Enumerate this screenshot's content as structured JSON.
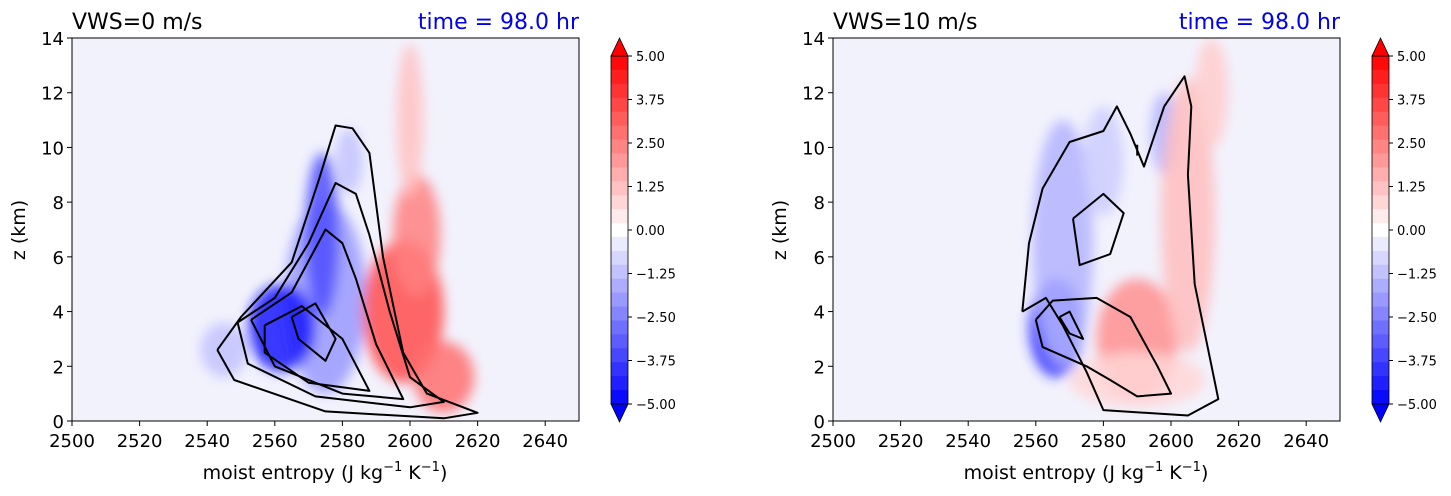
{
  "chart_data": [
    {
      "type": "heatmap",
      "title": "VWS=0 m/s",
      "time_label": "time = 98.0 hr",
      "xlabel": "moist entropy (J kg",
      "xlabel_sup1": "−1",
      "xlabel_mid": " K",
      "xlabel_sup2": "−1",
      "xlabel_end": ")",
      "ylabel": "z (km)",
      "xlim": [
        2500,
        2650
      ],
      "ylim": [
        0,
        14
      ],
      "xticks": [
        "2500",
        "2520",
        "2540",
        "2560",
        "2580",
        "2600",
        "2620",
        "2640"
      ],
      "yticks": [
        "0",
        "2",
        "4",
        "6",
        "8",
        "10",
        "12",
        "14"
      ],
      "colorbar": {
        "min": -5.0,
        "max": 5.0,
        "extend": "both",
        "ticks": [
          "5.00",
          "3.75",
          "2.50",
          "1.25",
          "0.00",
          "−1.25",
          "−2.50",
          "−3.75",
          "−5.00"
        ]
      },
      "blobs": [
        {
          "x": 2575,
          "y": 4.5,
          "rx": 12,
          "ry": 3.5,
          "val": -2.0
        },
        {
          "x": 2562,
          "y": 3.4,
          "rx": 10,
          "ry": 1.6,
          "val": -4.5
        },
        {
          "x": 2574,
          "y": 6.8,
          "rx": 5,
          "ry": 3.0,
          "val": -3.5
        },
        {
          "x": 2582,
          "y": 9.5,
          "rx": 4,
          "ry": 1.2,
          "val": -1.2
        },
        {
          "x": 2545,
          "y": 2.6,
          "rx": 7,
          "ry": 1.0,
          "val": -1.2
        },
        {
          "x": 2598,
          "y": 4.0,
          "rx": 12,
          "ry": 2.6,
          "val": 3.5
        },
        {
          "x": 2602,
          "y": 6.8,
          "rx": 7,
          "ry": 2.2,
          "val": 2.5
        },
        {
          "x": 2600,
          "y": 11.0,
          "rx": 4,
          "ry": 2.8,
          "val": 1.2
        },
        {
          "x": 2610,
          "y": 1.6,
          "rx": 9,
          "ry": 1.3,
          "val": 2.8
        }
      ],
      "contours": [
        [
          [
            2543,
            2.6
          ],
          [
            2550,
            3.8
          ],
          [
            2565,
            5.8
          ],
          [
            2573,
            8.8
          ],
          [
            2578,
            10.8
          ],
          [
            2583,
            10.7
          ],
          [
            2588,
            9.8
          ],
          [
            2592,
            6
          ],
          [
            2598,
            2.5
          ],
          [
            2605,
            1
          ],
          [
            2620,
            0.3
          ],
          [
            2610,
            0.1
          ],
          [
            2575,
            0.35
          ],
          [
            2548,
            1.5
          ],
          [
            2543,
            2.6
          ]
        ],
        [
          [
            2549,
            3.6
          ],
          [
            2560,
            4.5
          ],
          [
            2570,
            6.5
          ],
          [
            2578,
            8.7
          ],
          [
            2584,
            8.3
          ],
          [
            2588,
            6.8
          ],
          [
            2594,
            4
          ],
          [
            2600,
            1.6
          ],
          [
            2610,
            0.7
          ],
          [
            2600,
            0.5
          ],
          [
            2572,
            0.9
          ],
          [
            2552,
            2.1
          ],
          [
            2549,
            3.6
          ]
        ],
        [
          [
            2553,
            3.7
          ],
          [
            2565,
            4.7
          ],
          [
            2575,
            7.0
          ],
          [
            2580,
            6.5
          ],
          [
            2584,
            5.2
          ],
          [
            2590,
            2.8
          ],
          [
            2598,
            0.8
          ],
          [
            2580,
            1.0
          ],
          [
            2560,
            2.0
          ],
          [
            2553,
            3.7
          ]
        ],
        [
          [
            2557,
            3.5
          ],
          [
            2568,
            4.2
          ],
          [
            2580,
            3.0
          ],
          [
            2588,
            1.1
          ],
          [
            2570,
            1.4
          ],
          [
            2557,
            2.5
          ],
          [
            2557,
            3.5
          ]
        ],
        [
          [
            2565,
            3.8
          ],
          [
            2572,
            4.3
          ],
          [
            2578,
            3.0
          ],
          [
            2575,
            2.2
          ],
          [
            2567,
            3.0
          ],
          [
            2565,
            3.8
          ]
        ]
      ]
    },
    {
      "type": "heatmap",
      "title": "VWS=10 m/s",
      "time_label": "time = 98.0 hr",
      "xlabel": "moist entropy (J kg",
      "xlabel_sup1": "−1",
      "xlabel_mid": " K",
      "xlabel_sup2": "−1",
      "xlabel_end": ")",
      "ylabel": "z (km)",
      "xlim": [
        2500,
        2650
      ],
      "ylim": [
        0,
        14
      ],
      "xticks": [
        "2500",
        "2520",
        "2540",
        "2560",
        "2580",
        "2600",
        "2620",
        "2640"
      ],
      "yticks": [
        "0",
        "2",
        "4",
        "6",
        "8",
        "10",
        "12",
        "14"
      ],
      "colorbar": {
        "min": -5.0,
        "max": 5.0,
        "extend": "both",
        "ticks": [
          "5.00",
          "3.75",
          "2.50",
          "1.25",
          "0.00",
          "−1.25",
          "−2.50",
          "−3.75",
          "−5.00"
        ]
      },
      "blobs": [
        {
          "x": 2566,
          "y": 3.4,
          "rx": 8,
          "ry": 1.8,
          "val": -4.2
        },
        {
          "x": 2568,
          "y": 6.5,
          "rx": 9,
          "ry": 4.5,
          "val": -1.5
        },
        {
          "x": 2580,
          "y": 9.5,
          "rx": 6,
          "ry": 2.0,
          "val": -1.0
        },
        {
          "x": 2598,
          "y": 10.5,
          "rx": 4,
          "ry": 1.5,
          "val": -1.5
        },
        {
          "x": 2590,
          "y": 3.0,
          "rx": 12,
          "ry": 2.2,
          "val": 2.2
        },
        {
          "x": 2605,
          "y": 7.5,
          "rx": 8,
          "ry": 5.0,
          "val": 1.3
        },
        {
          "x": 2612,
          "y": 12.0,
          "rx": 5,
          "ry": 2.0,
          "val": 1.0
        },
        {
          "x": 2590,
          "y": 1.5,
          "rx": 20,
          "ry": 1.0,
          "val": 0.8
        }
      ],
      "contours": [
        [
          [
            2556,
            4.0
          ],
          [
            2558,
            6.5
          ],
          [
            2562,
            8.5
          ],
          [
            2570,
            10.2
          ],
          [
            2580,
            10.6
          ],
          [
            2584,
            11.5
          ],
          [
            2588,
            10.5
          ],
          [
            2592,
            9.3
          ],
          [
            2598,
            11.5
          ],
          [
            2604,
            12.6
          ],
          [
            2606,
            11.5
          ],
          [
            2605,
            9
          ],
          [
            2607,
            5
          ],
          [
            2612,
            2.0
          ],
          [
            2614,
            0.8
          ],
          [
            2605,
            0.2
          ],
          [
            2580,
            0.4
          ],
          [
            2575,
            1.8
          ],
          [
            2568,
            3.5
          ],
          [
            2563,
            4.5
          ],
          [
            2556,
            4.0
          ]
        ],
        [
          [
            2560,
            3.7
          ],
          [
            2565,
            4.4
          ],
          [
            2578,
            4.5
          ],
          [
            2588,
            3.8
          ],
          [
            2596,
            2.0
          ],
          [
            2600,
            1.0
          ],
          [
            2590,
            0.9
          ],
          [
            2582,
            1.5
          ],
          [
            2575,
            2.0
          ],
          [
            2562,
            2.7
          ],
          [
            2560,
            3.7
          ]
        ],
        [
          [
            2567,
            3.8
          ],
          [
            2570,
            4.0
          ],
          [
            2574,
            3.0
          ],
          [
            2570,
            3.2
          ],
          [
            2567,
            3.8
          ]
        ],
        [
          [
            2571,
            7.4
          ],
          [
            2580,
            8.3
          ],
          [
            2586,
            7.6
          ],
          [
            2582,
            6.1
          ],
          [
            2573,
            5.7
          ],
          [
            2571,
            7.4
          ]
        ],
        [
          [
            2590,
            10.1
          ],
          [
            2590,
            9.7
          ]
        ]
      ]
    }
  ]
}
